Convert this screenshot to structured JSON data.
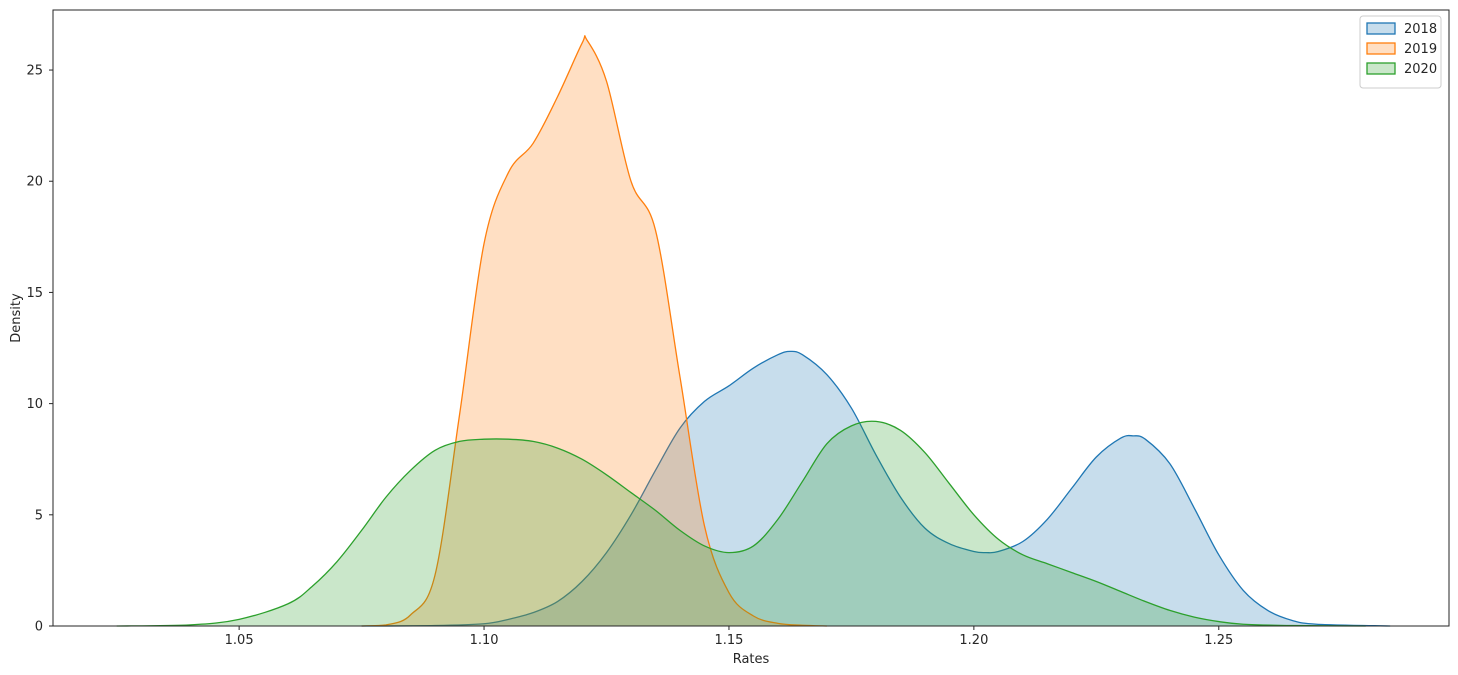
{
  "chart_data": {
    "type": "area",
    "xlabel": "Rates",
    "ylabel": "Density",
    "xlim": [
      1.012,
      1.297
    ],
    "ylim": [
      0,
      27.7
    ],
    "xticks": [
      1.05,
      1.1,
      1.15,
      1.2,
      1.25
    ],
    "xtick_labels": [
      "1.05",
      "1.10",
      "1.15",
      "1.20",
      "1.25"
    ],
    "yticks": [
      0,
      5,
      10,
      15,
      20,
      25
    ],
    "ytick_labels": [
      "0",
      "5",
      "10",
      "15",
      "20",
      "25"
    ],
    "grid": false,
    "legend": "top-right",
    "series": [
      {
        "name": "2018",
        "color": "#1f77b4",
        "x": [
          1.075,
          1.09,
          1.1,
          1.105,
          1.11,
          1.115,
          1.12,
          1.125,
          1.13,
          1.135,
          1.14,
          1.145,
          1.15,
          1.155,
          1.16,
          1.1625,
          1.165,
          1.17,
          1.175,
          1.18,
          1.185,
          1.19,
          1.195,
          1.2,
          1.2025,
          1.205,
          1.21,
          1.215,
          1.22,
          1.225,
          1.23,
          1.2325,
          1.235,
          1.24,
          1.245,
          1.25,
          1.255,
          1.26,
          1.265,
          1.27,
          1.285
        ],
        "values": [
          0,
          0.02,
          0.1,
          0.3,
          0.6,
          1.1,
          2.0,
          3.3,
          5.0,
          7.0,
          8.9,
          10.1,
          10.8,
          11.6,
          12.2,
          12.35,
          12.2,
          11.3,
          9.8,
          7.7,
          5.8,
          4.4,
          3.7,
          3.35,
          3.3,
          3.35,
          3.8,
          4.8,
          6.2,
          7.6,
          8.45,
          8.55,
          8.4,
          7.3,
          5.3,
          3.2,
          1.6,
          0.7,
          0.25,
          0.08,
          0
        ]
      },
      {
        "name": "2019",
        "color": "#ff7f0e",
        "x": [
          1.075,
          1.08,
          1.085,
          1.09,
          1.095,
          1.1,
          1.105,
          1.11,
          1.115,
          1.12,
          1.121,
          1.125,
          1.13,
          1.135,
          1.14,
          1.145,
          1.15,
          1.155,
          1.16,
          1.165,
          1.17
        ],
        "values": [
          0,
          0.05,
          0.5,
          2.3,
          9.5,
          17.2,
          20.4,
          21.7,
          23.8,
          26.2,
          26.35,
          24.5,
          20.0,
          17.8,
          11.2,
          4.5,
          1.5,
          0.45,
          0.12,
          0.03,
          0
        ]
      },
      {
        "name": "2020",
        "color": "#2ca02c",
        "x": [
          1.025,
          1.04,
          1.05,
          1.06,
          1.065,
          1.07,
          1.075,
          1.08,
          1.085,
          1.09,
          1.095,
          1.1,
          1.105,
          1.11,
          1.115,
          1.12,
          1.125,
          1.13,
          1.135,
          1.14,
          1.145,
          1.15,
          1.155,
          1.16,
          1.165,
          1.17,
          1.175,
          1.18,
          1.185,
          1.19,
          1.195,
          1.2,
          1.205,
          1.21,
          1.215,
          1.22,
          1.225,
          1.23,
          1.235,
          1.24,
          1.245,
          1.25,
          1.255,
          1.265,
          1.28
        ],
        "values": [
          0,
          0.05,
          0.3,
          1.0,
          1.8,
          2.9,
          4.3,
          5.8,
          7.0,
          7.9,
          8.3,
          8.4,
          8.4,
          8.3,
          8.0,
          7.5,
          6.8,
          6.0,
          5.2,
          4.3,
          3.6,
          3.3,
          3.6,
          4.8,
          6.5,
          8.2,
          9.0,
          9.2,
          8.8,
          7.8,
          6.4,
          5.0,
          3.9,
          3.2,
          2.8,
          2.4,
          2.0,
          1.55,
          1.1,
          0.7,
          0.4,
          0.2,
          0.08,
          0.02,
          0
        ]
      }
    ]
  }
}
